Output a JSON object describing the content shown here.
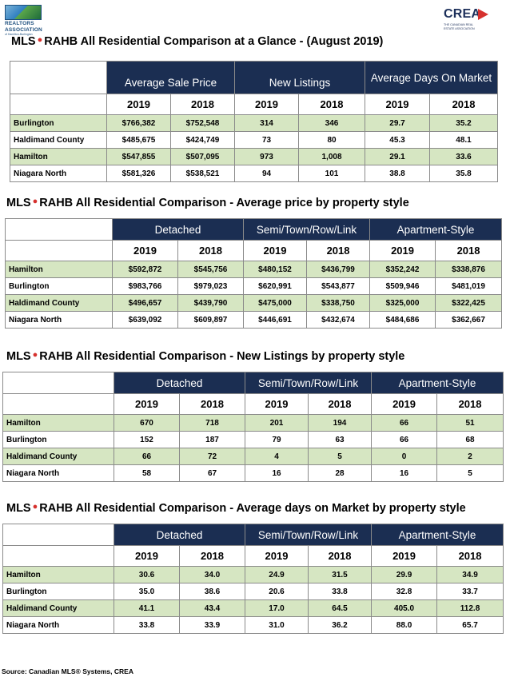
{
  "logos": {
    "realtors": {
      "line1": "REALTORS",
      "line2": "ASSOCIATION",
      "line3": "of Hamilton-Burlington"
    },
    "crea": {
      "word": "CREA",
      "sub1": "THE CANADIAN REAL",
      "sub2": "ESTATE ASSOCIATION"
    }
  },
  "colors": {
    "header_navy": "#1b2e52",
    "row_green": "#d6e6c2",
    "mls_dot": "#d6312e"
  },
  "sections": [
    {
      "title_prefix": "MLS",
      "title_text": "RAHB All Residential Comparison at a Glance - (August 2019)",
      "groups": [
        "Average Sale Price",
        "New Listings",
        "Average Days On Market"
      ],
      "years": [
        "2019",
        "2018",
        "2019",
        "2018",
        "2019",
        "2018"
      ],
      "rows": [
        {
          "label": "Burlington",
          "values": [
            "$766,382",
            "$752,548",
            "314",
            "346",
            "29.7",
            "35.2"
          ]
        },
        {
          "label": "Haldimand County",
          "values": [
            "$485,675",
            "$424,749",
            "73",
            "80",
            "45.3",
            "48.1"
          ]
        },
        {
          "label": "Hamilton",
          "values": [
            "$547,855",
            "$507,095",
            "973",
            "1,008",
            "29.1",
            "33.6"
          ]
        },
        {
          "label": "Niagara North",
          "values": [
            "$581,326",
            "$538,521",
            "94",
            "101",
            "38.8",
            "35.8"
          ]
        }
      ]
    },
    {
      "title_prefix": "MLS",
      "title_text": "RAHB All Residential Comparison - Average price by property style",
      "groups": [
        "Detached",
        "Semi/Town/Row/Link",
        "Apartment-Style"
      ],
      "years": [
        "2019",
        "2018",
        "2019",
        "2018",
        "2019",
        "2018"
      ],
      "rows": [
        {
          "label": "Hamilton",
          "values": [
            "$592,872",
            "$545,756",
            "$480,152",
            "$436,799",
            "$352,242",
            "$338,876"
          ]
        },
        {
          "label": "Burlington",
          "values": [
            "$983,766",
            "$979,023",
            "$620,991",
            "$543,877",
            "$509,946",
            "$481,019"
          ]
        },
        {
          "label": "Haldimand County",
          "values": [
            "$496,657",
            "$439,790",
            "$475,000",
            "$338,750",
            "$325,000",
            "$322,425"
          ]
        },
        {
          "label": "Niagara North",
          "values": [
            "$639,092",
            "$609,897",
            "$446,691",
            "$432,674",
            "$484,686",
            "$362,667"
          ]
        }
      ]
    },
    {
      "title_prefix": "MLS",
      "title_text": "RAHB All Residential Comparison - New Listings by property style",
      "groups": [
        "Detached",
        "Semi/Town/Row/Link",
        "Apartment-Style"
      ],
      "years": [
        "2019",
        "2018",
        "2019",
        "2018",
        "2019",
        "2018"
      ],
      "rows": [
        {
          "label": "Hamilton",
          "values": [
            "670",
            "718",
            "201",
            "194",
            "66",
            "51"
          ]
        },
        {
          "label": "Burlington",
          "values": [
            "152",
            "187",
            "79",
            "63",
            "66",
            "68"
          ]
        },
        {
          "label": "Haldimand County",
          "values": [
            "66",
            "72",
            "4",
            "5",
            "0",
            "2"
          ]
        },
        {
          "label": "Niagara North",
          "values": [
            "58",
            "67",
            "16",
            "28",
            "16",
            "5"
          ]
        }
      ]
    },
    {
      "title_prefix": "MLS",
      "title_text": "RAHB All Residential Comparison - Average days on Market by property style",
      "groups": [
        "Detached",
        "Semi/Town/Row/Link",
        "Apartment-Style"
      ],
      "years": [
        "2019",
        "2018",
        "2019",
        "2018",
        "2019",
        "2018"
      ],
      "rows": [
        {
          "label": "Hamilton",
          "values": [
            "30.6",
            "34.0",
            "24.9",
            "31.5",
            "29.9",
            "34.9"
          ]
        },
        {
          "label": "Burlington",
          "values": [
            "35.0",
            "38.6",
            "20.6",
            "33.8",
            "32.8",
            "33.7"
          ]
        },
        {
          "label": "Haldimand County",
          "values": [
            "41.1",
            "43.4",
            "17.0",
            "64.5",
            "405.0",
            "112.8"
          ]
        },
        {
          "label": "Niagara North",
          "values": [
            "33.8",
            "33.9",
            "31.0",
            "36.2",
            "88.0",
            "65.7"
          ]
        }
      ]
    }
  ],
  "source": "Source: Canadian MLS® Systems, CREA"
}
